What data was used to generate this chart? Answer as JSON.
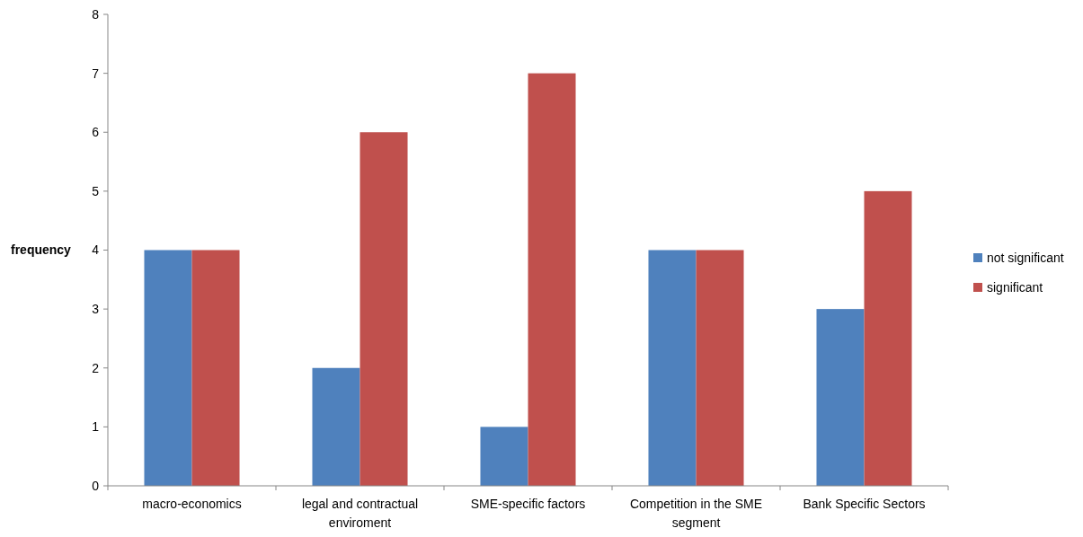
{
  "chart_data": {
    "type": "bar",
    "ylabel": "frequency",
    "categories": [
      "macro-economics",
      "legal and contractual enviroment",
      "SME-specific factors",
      "Competition in the SME segment",
      "Bank Specific Sectors"
    ],
    "series": [
      {
        "name": "not significant",
        "color": "#4f81bd",
        "values": [
          4,
          2,
          1,
          4,
          3
        ]
      },
      {
        "name": "significant",
        "color": "#c0504d",
        "values": [
          4,
          6,
          7,
          4,
          5
        ]
      }
    ],
    "ylim": [
      0,
      8
    ],
    "yticks": [
      0,
      1,
      2,
      3,
      4,
      5,
      6,
      7,
      8
    ],
    "grid": false,
    "legend": "right"
  }
}
